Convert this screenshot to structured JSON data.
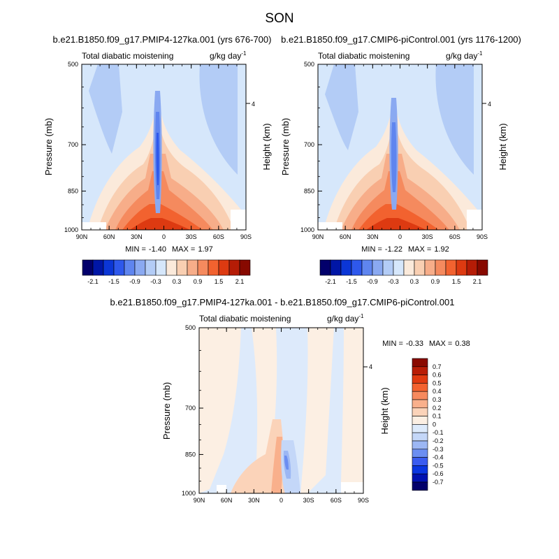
{
  "page": {
    "title": "SON"
  },
  "colors": {
    "diff_scale": [
      "#02006b",
      "#0011b0",
      "#0a36e1",
      "#3a5cf0",
      "#6b8ef2",
      "#9cb7f4",
      "#c4d7f8",
      "#ddeafb",
      "#fcefe3",
      "#fbd3b9",
      "#f9b08c",
      "#f78a5e",
      "#f3622f",
      "#e03a10",
      "#b81d06",
      "#8a0a00"
    ],
    "level_colors": [
      "#02006b",
      "#0016a6",
      "#0b36d6",
      "#2e58ec",
      "#5f85ef",
      "#8aa9f1",
      "#b3ccf6",
      "#d6e7fb",
      "#fbeadb",
      "#f9cfb2",
      "#f7ad89",
      "#f58a5e",
      "#f2622f",
      "#dd3a11",
      "#b51c06",
      "#870900"
    ]
  },
  "chart_data": [
    {
      "type": "heatmap",
      "title": "b.e21.B1850.f09_g17.PMIP4-127ka.001 (yrs 676-700)",
      "left_label": "Total diabatic moistening",
      "right_label": "g/kg day",
      "units_exponent": "-1",
      "ylabel": "Pressure (mb)",
      "ylabel_right": "Height (km)",
      "x_ticks": [
        "90N",
        "60N",
        "30N",
        "0",
        "30S",
        "60S",
        "90S"
      ],
      "y_ticks": [
        "500",
        "700",
        "850",
        "1000"
      ],
      "height_tick": "4",
      "min_label": "MIN =",
      "min_value": "-1.40",
      "max_label": "MAX =",
      "max_value": "1.97",
      "colorbar_labels": [
        "-2.1",
        "-1.5",
        "-0.9",
        "-0.3",
        "0.3",
        "0.9",
        "1.5",
        "2.1"
      ],
      "ylim": [
        1000,
        500
      ],
      "xlim": [
        90,
        -90
      ]
    },
    {
      "type": "heatmap",
      "title": "b.e21.B1850.f09_g17.CMIP6-piControl.001 (yrs 1176-1200)",
      "left_label": "Total diabatic moistening",
      "right_label": "g/kg day",
      "units_exponent": "-1",
      "ylabel": "Pressure (mb)",
      "ylabel_right": "Height (km)",
      "x_ticks": [
        "90N",
        "60N",
        "30N",
        "0",
        "30S",
        "60S",
        "90S"
      ],
      "y_ticks": [
        "500",
        "700",
        "850",
        "1000"
      ],
      "height_tick": "4",
      "min_label": "MIN =",
      "min_value": "-1.22",
      "max_label": "MAX =",
      "max_value": "1.92",
      "colorbar_labels": [
        "-2.1",
        "-1.5",
        "-0.9",
        "-0.3",
        "0.3",
        "0.9",
        "1.5",
        "2.1"
      ],
      "ylim": [
        1000,
        500
      ],
      "xlim": [
        90,
        -90
      ]
    },
    {
      "type": "heatmap",
      "title": "b.e21.B1850.f09_g17.PMIP4-127ka.001 - b.e21.B1850.f09_g17.CMIP6-piControl.001",
      "left_label": "Total diabatic moistening",
      "right_label": "g/kg day",
      "units_exponent": "-1",
      "ylabel": "Pressure (mb)",
      "ylabel_right": "Height (km)",
      "x_ticks": [
        "90N",
        "60N",
        "30N",
        "0",
        "30S",
        "60S",
        "90S"
      ],
      "y_ticks": [
        "500",
        "700",
        "850",
        "1000"
      ],
      "height_tick": "4",
      "min_label": "MIN =",
      "min_value": "-0.33",
      "max_label": "MAX =",
      "max_value": "0.38",
      "colorbar_labels": [
        "0.7",
        "0.6",
        "0.5",
        "0.4",
        "0.3",
        "0.2",
        "0.1",
        "0",
        "-0.1",
        "-0.2",
        "-0.3",
        "-0.4",
        "-0.5",
        "-0.6",
        "-0.7"
      ],
      "ylim": [
        1000,
        500
      ],
      "xlim": [
        90,
        -90
      ]
    }
  ]
}
